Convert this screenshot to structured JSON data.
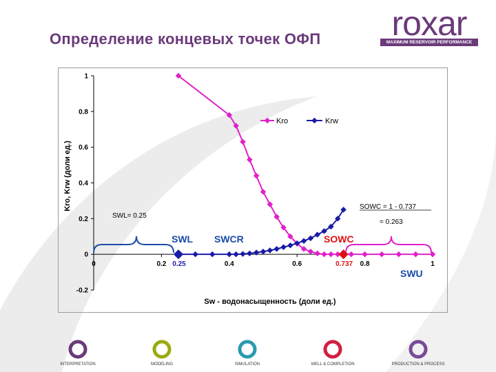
{
  "slide": {
    "title": "Определение концевых точек ОФП"
  },
  "logo": {
    "name": "roxar",
    "tagline": "MAXIMUM RESERVOIR PERFORMANCE",
    "color": "#6b3a7a"
  },
  "chart_data": {
    "type": "line",
    "xlabel": "Sw - водонасыщенность (доли ед.)",
    "ylabel": "Kro, Krw (доли ед.)",
    "xlim": [
      0,
      1
    ],
    "ylim": [
      -0.2,
      1
    ],
    "x_ticks": [
      "0",
      "0.2",
      "0.4",
      "0.6",
      "0.8",
      "1"
    ],
    "y_ticks": [
      "1",
      "0.8",
      "0.6",
      "0.4",
      "0.2",
      "0",
      "-0.2"
    ],
    "grid": false,
    "legend_position": "top-right",
    "series": [
      {
        "name": "Kro",
        "color": "#e020c8",
        "x": [
          0.25,
          0.4,
          0.42,
          0.44,
          0.46,
          0.48,
          0.5,
          0.52,
          0.54,
          0.56,
          0.58,
          0.6,
          0.62,
          0.64,
          0.66,
          0.68,
          0.7,
          0.72,
          0.737,
          0.76,
          0.8,
          0.85,
          0.9,
          0.95,
          1.0
        ],
        "y": [
          1.0,
          0.78,
          0.72,
          0.63,
          0.53,
          0.44,
          0.35,
          0.28,
          0.21,
          0.15,
          0.1,
          0.06,
          0.03,
          0.015,
          0.005,
          0.0,
          0.0,
          0.0,
          0.0,
          0.0,
          0.0,
          0.0,
          0.0,
          0.0,
          0.0
        ]
      },
      {
        "name": "Krw",
        "color": "#1a1aa8",
        "x": [
          0.25,
          0.3,
          0.35,
          0.4,
          0.42,
          0.44,
          0.46,
          0.48,
          0.5,
          0.52,
          0.54,
          0.56,
          0.58,
          0.6,
          0.62,
          0.64,
          0.66,
          0.68,
          0.7,
          0.72,
          0.737
        ],
        "y": [
          0.0,
          0.0,
          0.0,
          0.0,
          0.0,
          0.002,
          0.005,
          0.01,
          0.015,
          0.022,
          0.03,
          0.04,
          0.05,
          0.062,
          0.075,
          0.09,
          0.11,
          0.13,
          0.155,
          0.2,
          0.25
        ]
      }
    ],
    "endpoint_markers": [
      {
        "x": 0.25,
        "y": 0,
        "color": "#1a1aa8",
        "label": "0.25",
        "label_color": "#1a1aa8"
      },
      {
        "x": 0.737,
        "y": 0,
        "color": "#e01010",
        "label": "0.737",
        "label_color": "#e01010"
      }
    ],
    "annotations": {
      "swl_note": "SWL= 0.25",
      "sowc_note_line1": "SOWC = 1 - 0.737",
      "sowc_note_line2": "= 0.263",
      "swl_label": "SWL",
      "swcr_label": "SWCR",
      "sowc_label": "SOWC",
      "swu_label": "SWU"
    },
    "colors": {
      "kro": "#e020c8",
      "krw": "#1a1aa8",
      "sowc_red": "#e01010",
      "swl_blue": "#1a4aa8"
    }
  },
  "footer": {
    "items": [
      {
        "label": "INTERPRETATION",
        "color": "#6b3a7a"
      },
      {
        "label": "MODELING",
        "color": "#9aaa10"
      },
      {
        "label": "SIMULATION",
        "color": "#2a9ab0"
      },
      {
        "label": "WELL & COMPLETION",
        "color": "#d02040"
      },
      {
        "label": "PRODUCTION & PROCESS",
        "color": "#7a4a9a"
      }
    ]
  }
}
